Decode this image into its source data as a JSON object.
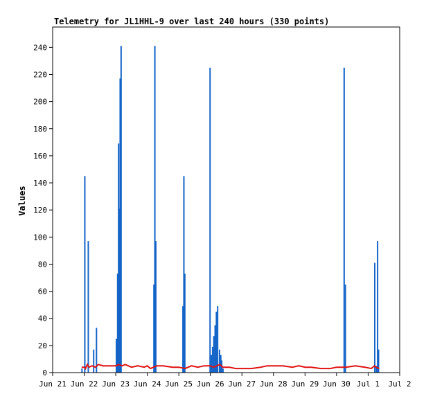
{
  "chart_data": {
    "type": "bar",
    "title": "Telemetry for JL1HHL-9 over last 240 hours (330 points)",
    "ylabel": "Values",
    "xlabel": "",
    "ylim": [
      0,
      255
    ],
    "xlim": [
      0,
      11
    ],
    "grid": false,
    "yticks": [
      0,
      20,
      40,
      60,
      80,
      100,
      120,
      140,
      160,
      180,
      200,
      220,
      240
    ],
    "xticks": [
      {
        "x": 0,
        "label": "Jun 21"
      },
      {
        "x": 1,
        "label": "Jun 22"
      },
      {
        "x": 2,
        "label": "Jun 23"
      },
      {
        "x": 3,
        "label": "Jun 24"
      },
      {
        "x": 4,
        "label": "Jun 25"
      },
      {
        "x": 5,
        "label": "Jun 26"
      },
      {
        "x": 6,
        "label": "Jun 27"
      },
      {
        "x": 7,
        "label": "Jun 28"
      },
      {
        "x": 8,
        "label": "Jun 29"
      },
      {
        "x": 9,
        "label": "Jun 30"
      },
      {
        "x": 10,
        "label": "Jul 1"
      },
      {
        "x": 11,
        "label": "Jul 2"
      }
    ],
    "colors": {
      "series1": "#1464c8",
      "series2": "#e01010",
      "axis": "#000000"
    },
    "series": [
      {
        "style": "spikes",
        "color": "#1464c8",
        "points": [
          [
            0.93,
            3
          ],
          [
            1.02,
            145
          ],
          [
            1.13,
            97
          ],
          [
            1.3,
            17
          ],
          [
            1.39,
            33
          ],
          [
            2.02,
            25
          ],
          [
            2.06,
            73
          ],
          [
            2.09,
            169
          ],
          [
            2.12,
            121
          ],
          [
            2.14,
            217
          ],
          [
            2.17,
            241
          ],
          [
            3.21,
            65
          ],
          [
            3.24,
            241
          ],
          [
            3.27,
            97
          ],
          [
            4.13,
            49
          ],
          [
            4.16,
            145
          ],
          [
            4.19,
            73
          ],
          [
            4.99,
            225
          ],
          [
            5.03,
            13
          ],
          [
            5.07,
            19
          ],
          [
            5.11,
            27
          ],
          [
            5.15,
            35
          ],
          [
            5.19,
            45
          ],
          [
            5.23,
            49
          ],
          [
            5.29,
            17
          ],
          [
            5.33,
            13
          ],
          [
            5.36,
            9
          ],
          [
            5.4,
            3
          ],
          [
            9.24,
            225
          ],
          [
            9.28,
            65
          ],
          [
            10.21,
            81
          ],
          [
            10.26,
            5
          ],
          [
            10.3,
            97
          ],
          [
            10.33,
            17
          ]
        ]
      },
      {
        "style": "line",
        "color": "#e01010",
        "points": [
          [
            0.92,
            4
          ],
          [
            1.0,
            4
          ],
          [
            1.04,
            3
          ],
          [
            1.1,
            6
          ],
          [
            1.15,
            4
          ],
          [
            1.25,
            5
          ],
          [
            1.35,
            4
          ],
          [
            1.45,
            6
          ],
          [
            1.6,
            5
          ],
          [
            1.8,
            5
          ],
          [
            2.0,
            5
          ],
          [
            2.1,
            6
          ],
          [
            2.2,
            5
          ],
          [
            2.3,
            6
          ],
          [
            2.5,
            4
          ],
          [
            2.7,
            5
          ],
          [
            2.9,
            4
          ],
          [
            3.0,
            5
          ],
          [
            3.1,
            3
          ],
          [
            3.2,
            4
          ],
          [
            3.3,
            5
          ],
          [
            3.5,
            5
          ],
          [
            3.8,
            4
          ],
          [
            4.0,
            4
          ],
          [
            4.2,
            3
          ],
          [
            4.4,
            5
          ],
          [
            4.6,
            4
          ],
          [
            4.8,
            5
          ],
          [
            5.0,
            5
          ],
          [
            5.1,
            4
          ],
          [
            5.3,
            6
          ],
          [
            5.4,
            4
          ],
          [
            5.6,
            4
          ],
          [
            5.8,
            3
          ],
          [
            6.0,
            3
          ],
          [
            6.3,
            3
          ],
          [
            6.6,
            4
          ],
          [
            6.8,
            5
          ],
          [
            7.0,
            5
          ],
          [
            7.3,
            5
          ],
          [
            7.6,
            4
          ],
          [
            7.8,
            5
          ],
          [
            8.0,
            4
          ],
          [
            8.2,
            4
          ],
          [
            8.5,
            3
          ],
          [
            8.8,
            3
          ],
          [
            9.0,
            4
          ],
          [
            9.3,
            4
          ],
          [
            9.6,
            5
          ],
          [
            9.9,
            4
          ],
          [
            10.1,
            3
          ],
          [
            10.2,
            5
          ],
          [
            10.25,
            4
          ],
          [
            10.35,
            3
          ]
        ]
      }
    ]
  }
}
